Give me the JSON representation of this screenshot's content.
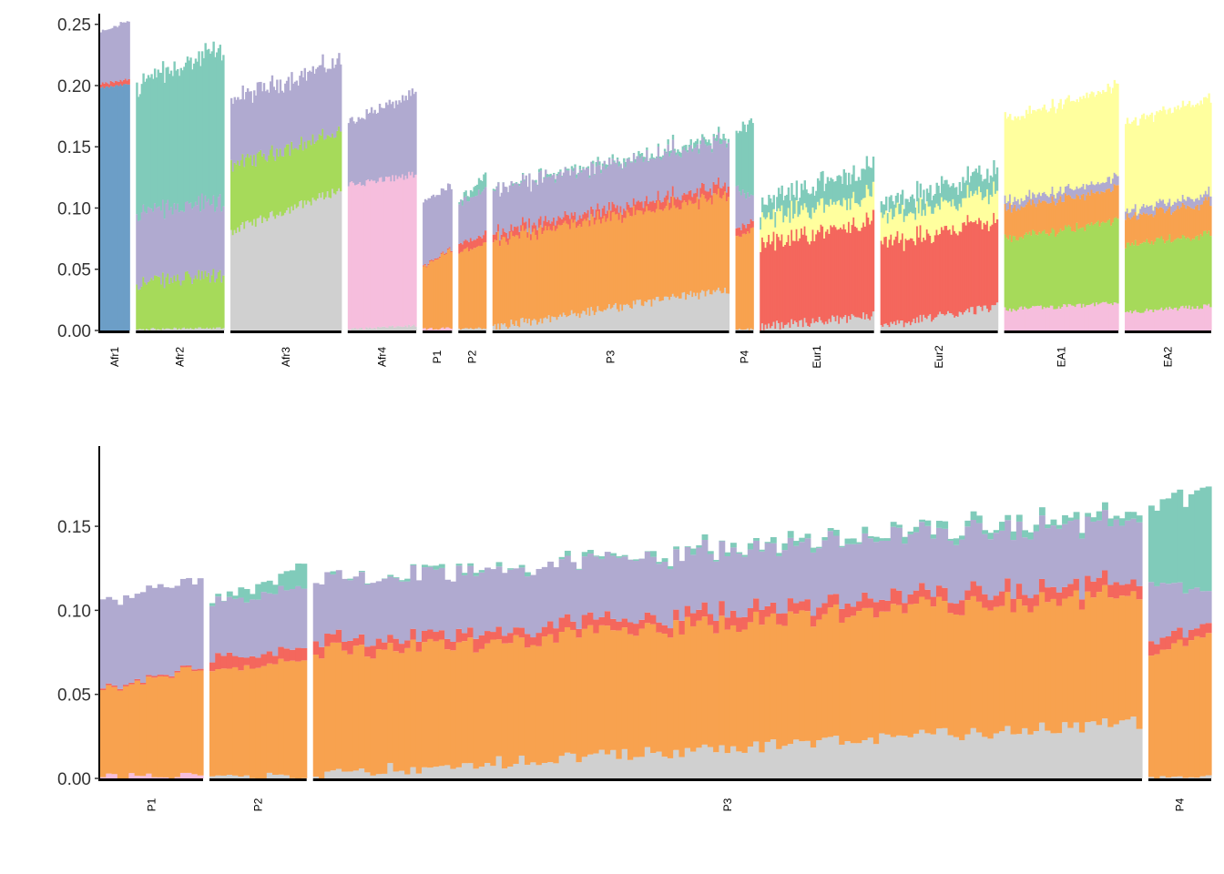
{
  "chart_data": [
    {
      "type": "bar",
      "stacked": true,
      "panel": "top",
      "ylim": [
        0,
        0.255
      ],
      "yticks": [
        "0.00",
        "0.05",
        "0.10",
        "0.15",
        "0.20",
        "0.25"
      ],
      "yticks_values": [
        0,
        0.05,
        0.1,
        0.15,
        0.2,
        0.25
      ],
      "colors": {
        "steelblue": "#6c9ec7",
        "teal": "#80cbba",
        "lavender": "#b0aad0",
        "green": "#a6da5a",
        "gray": "#d0d0d0",
        "pink": "#f6bedd",
        "orange": "#f8a24f",
        "red": "#f4675d",
        "yellow": "#ffff9e"
      },
      "groups": [
        {
          "label": "Afr1",
          "n": 18,
          "layers": [
            {
              "name": "steelblue",
              "start": 0.198,
              "end": 0.201,
              "jitter": 0.001
            },
            {
              "name": "red",
              "start": 0.003,
              "end": 0.004,
              "jitter": 0.001
            },
            {
              "name": "lavender",
              "start": 0.042,
              "end": 0.048,
              "jitter": 0.002
            }
          ]
        },
        {
          "label": "Afr2",
          "n": 54,
          "layers": [
            {
              "name": "gray",
              "start": 0.001,
              "end": 0.002,
              "jitter": 0.001
            },
            {
              "name": "green",
              "start": 0.038,
              "end": 0.043,
              "jitter": 0.006
            },
            {
              "name": "lavender",
              "start": 0.058,
              "end": 0.06,
              "jitter": 0.004
            },
            {
              "name": "teal",
              "start": 0.104,
              "end": 0.125,
              "jitter": 0.004
            }
          ]
        },
        {
          "label": "Afr3",
          "n": 68,
          "layers": [
            {
              "name": "gray",
              "start": 0.081,
              "end": 0.115,
              "jitter": 0.004
            },
            {
              "name": "green",
              "start": 0.054,
              "end": 0.047,
              "jitter": 0.004
            },
            {
              "name": "lavender",
              "start": 0.053,
              "end": 0.058,
              "jitter": 0.004
            }
          ]
        },
        {
          "label": "Afr4",
          "n": 42,
          "layers": [
            {
              "name": "gray",
              "start": 0.001,
              "end": 0.004,
              "jitter": 0.001
            },
            {
              "name": "pink",
              "start": 0.118,
              "end": 0.123,
              "jitter": 0.003
            },
            {
              "name": "lavender",
              "start": 0.052,
              "end": 0.066,
              "jitter": 0.003
            }
          ]
        },
        {
          "label": "P1",
          "n": 18,
          "layers": [
            {
              "name": "pink",
              "start": 0.001,
              "end": 0.002,
              "jitter": 0.001
            },
            {
              "name": "orange",
              "start": 0.05,
              "end": 0.064,
              "jitter": 0.002
            },
            {
              "name": "red",
              "start": 0.001,
              "end": 0.001,
              "jitter": 0
            },
            {
              "name": "lavender",
              "start": 0.052,
              "end": 0.052,
              "jitter": 0.002
            }
          ]
        },
        {
          "label": "P2",
          "n": 17,
          "layers": [
            {
              "name": "gray",
              "start": 0.001,
              "end": 0.002,
              "jitter": 0.001
            },
            {
              "name": "orange",
              "start": 0.062,
              "end": 0.07,
              "jitter": 0.002
            },
            {
              "name": "red",
              "start": 0.007,
              "end": 0.008,
              "jitter": 0.002
            },
            {
              "name": "lavender",
              "start": 0.033,
              "end": 0.037,
              "jitter": 0.002
            },
            {
              "name": "teal",
              "start": 0.001,
              "end": 0.012,
              "jitter": 0.002
            }
          ]
        },
        {
          "label": "P3",
          "n": 145,
          "layers": [
            {
              "name": "gray",
              "start": 0.003,
              "end": 0.033,
              "jitter": 0.004
            },
            {
              "name": "orange",
              "start": 0.072,
              "end": 0.077,
              "jitter": 0.004
            },
            {
              "name": "red",
              "start": 0.006,
              "end": 0.008,
              "jitter": 0.002
            },
            {
              "name": "lavender",
              "start": 0.036,
              "end": 0.036,
              "jitter": 0.002
            },
            {
              "name": "teal",
              "start": 0.0,
              "end": 0.004,
              "jitter": 0.002
            }
          ]
        },
        {
          "label": "P4",
          "n": 11,
          "layers": [
            {
              "name": "gray",
              "start": 0.001,
              "end": 0.001,
              "jitter": 0.001
            },
            {
              "name": "orange",
              "start": 0.074,
              "end": 0.084,
              "jitter": 0.003
            },
            {
              "name": "red",
              "start": 0.007,
              "end": 0.006,
              "jitter": 0.002
            },
            {
              "name": "lavender",
              "start": 0.034,
              "end": 0.02,
              "jitter": 0.002
            },
            {
              "name": "teal",
              "start": 0.045,
              "end": 0.062,
              "jitter": 0.004
            }
          ]
        },
        {
          "label": "Eur1",
          "n": 70,
          "layers": [
            {
              "name": "gray",
              "start": 0.003,
              "end": 0.012,
              "jitter": 0.004
            },
            {
              "name": "red",
              "start": 0.067,
              "end": 0.078,
              "jitter": 0.006
            },
            {
              "name": "yellow",
              "start": 0.021,
              "end": 0.021,
              "jitter": 0.003
            },
            {
              "name": "teal",
              "start": 0.013,
              "end": 0.023,
              "jitter": 0.004
            }
          ]
        },
        {
          "label": "Eur2",
          "n": 72,
          "layers": [
            {
              "name": "gray",
              "start": 0.003,
              "end": 0.02,
              "jitter": 0.004
            },
            {
              "name": "red",
              "start": 0.067,
              "end": 0.072,
              "jitter": 0.006
            },
            {
              "name": "yellow",
              "start": 0.021,
              "end": 0.023,
              "jitter": 0.003
            },
            {
              "name": "teal",
              "start": 0.011,
              "end": 0.017,
              "jitter": 0.004
            }
          ]
        },
        {
          "label": "EA1",
          "n": 70,
          "layers": [
            {
              "name": "pink",
              "start": 0.017,
              "end": 0.022,
              "jitter": 0.002
            },
            {
              "name": "green",
              "start": 0.058,
              "end": 0.067,
              "jitter": 0.003
            },
            {
              "name": "orange",
              "start": 0.024,
              "end": 0.026,
              "jitter": 0.002
            },
            {
              "name": "lavender",
              "start": 0.006,
              "end": 0.008,
              "jitter": 0.002
            },
            {
              "name": "yellow",
              "start": 0.067,
              "end": 0.075,
              "jitter": 0.002
            }
          ]
        },
        {
          "label": "EA2",
          "n": 53,
          "layers": [
            {
              "name": "pink",
              "start": 0.015,
              "end": 0.02,
              "jitter": 0.002
            },
            {
              "name": "green",
              "start": 0.055,
              "end": 0.058,
              "jitter": 0.003
            },
            {
              "name": "orange",
              "start": 0.022,
              "end": 0.026,
              "jitter": 0.002
            },
            {
              "name": "lavender",
              "start": 0.005,
              "end": 0.007,
              "jitter": 0.002
            },
            {
              "name": "yellow",
              "start": 0.072,
              "end": 0.078,
              "jitter": 0.002
            }
          ]
        }
      ]
    },
    {
      "type": "bar",
      "stacked": true,
      "panel": "bottom",
      "ylim": [
        0,
        0.195
      ],
      "yticks": [
        "0.00",
        "0.05",
        "0.10",
        "0.15"
      ],
      "yticks_values": [
        0,
        0.05,
        0.1,
        0.15
      ],
      "groups": [
        {
          "label": "P1",
          "n": 18,
          "layers": [
            {
              "name": "pink",
              "start": 0.001,
              "end": 0.002,
              "jitter": 0.002
            },
            {
              "name": "orange",
              "start": 0.05,
              "end": 0.064,
              "jitter": 0.002
            },
            {
              "name": "red",
              "start": 0.001,
              "end": 0.001,
              "jitter": 0
            },
            {
              "name": "lavender",
              "start": 0.052,
              "end": 0.052,
              "jitter": 0.002
            }
          ]
        },
        {
          "label": "P2",
          "n": 17,
          "layers": [
            {
              "name": "gray",
              "start": 0.001,
              "end": 0.002,
              "jitter": 0.002
            },
            {
              "name": "orange",
              "start": 0.062,
              "end": 0.07,
              "jitter": 0.002
            },
            {
              "name": "red",
              "start": 0.007,
              "end": 0.008,
              "jitter": 0.003
            },
            {
              "name": "lavender",
              "start": 0.033,
              "end": 0.037,
              "jitter": 0.002
            },
            {
              "name": "teal",
              "start": 0.001,
              "end": 0.012,
              "jitter": 0.003
            }
          ]
        },
        {
          "label": "P3",
          "n": 145,
          "layers": [
            {
              "name": "gray",
              "start": 0.003,
              "end": 0.033,
              "jitter": 0.004
            },
            {
              "name": "orange",
              "start": 0.072,
              "end": 0.077,
              "jitter": 0.004
            },
            {
              "name": "red",
              "start": 0.006,
              "end": 0.008,
              "jitter": 0.002
            },
            {
              "name": "lavender",
              "start": 0.036,
              "end": 0.036,
              "jitter": 0.002
            },
            {
              "name": "teal",
              "start": 0.0,
              "end": 0.004,
              "jitter": 0.002
            }
          ]
        },
        {
          "label": "P4",
          "n": 11,
          "layers": [
            {
              "name": "gray",
              "start": 0.001,
              "end": 0.001,
              "jitter": 0.001
            },
            {
              "name": "orange",
              "start": 0.074,
              "end": 0.084,
              "jitter": 0.003
            },
            {
              "name": "red",
              "start": 0.007,
              "end": 0.006,
              "jitter": 0.002
            },
            {
              "name": "lavender",
              "start": 0.034,
              "end": 0.02,
              "jitter": 0.002
            },
            {
              "name": "teal",
              "start": 0.045,
              "end": 0.062,
              "jitter": 0.004
            }
          ]
        }
      ]
    }
  ]
}
